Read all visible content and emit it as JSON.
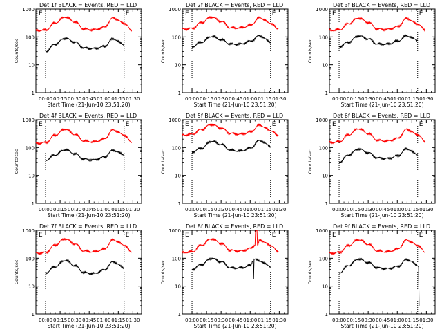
{
  "figure": {
    "xlabel_prefix": "Start Time",
    "start_time": "(21-Jun-10 23:51:20)",
    "ylabel": "Counts/sec",
    "title_suffix": "BLACK = Events, RED = LLD",
    "colors": {
      "events": "#000000",
      "lld": "#ff0000",
      "axis": "#000000",
      "background": "#ffffff"
    }
  },
  "chart_data": [
    {
      "type": "line",
      "title": "Det 1f BLACK = Events, RED = LLD",
      "detector": "Det 1f",
      "yscale": "log",
      "ylim": [
        1,
        1000
      ],
      "xlim_minutes": [
        -10,
        99
      ],
      "yticks": [
        "1",
        "10",
        "100",
        "1000"
      ],
      "xticks": [
        "00:00",
        "00:15",
        "00:30",
        "00:45",
        "01:00",
        "01:15",
        "01:30"
      ],
      "markers": [
        "E",
        "E"
      ],
      "marker_lines_minutes": [
        0,
        81
      ],
      "series": [
        {
          "name": "Events",
          "color": "#000000",
          "t_minutes": [
            0,
            10,
            20,
            30,
            40,
            50,
            60,
            70,
            81
          ],
          "values": [
            30,
            55,
            90,
            65,
            40,
            38,
            45,
            85,
            52
          ]
        },
        {
          "name": "LLD",
          "color": "#ff0000",
          "t_minutes": [
            -10,
            0,
            10,
            20,
            30,
            40,
            50,
            60,
            70,
            80,
            89
          ],
          "values": [
            170,
            175,
            320,
            520,
            350,
            190,
            180,
            220,
            480,
            320,
            180
          ]
        }
      ]
    },
    {
      "type": "line",
      "title": "Det 2f BLACK = Events, RED = LLD",
      "detector": "Det 2f",
      "yscale": "log",
      "ylim": [
        1,
        1000
      ],
      "xlim_minutes": [
        -10,
        99
      ],
      "yticks": [
        "1",
        "10",
        "100",
        "1000"
      ],
      "xticks": [
        "00:00",
        "00:15",
        "00:30",
        "00:45",
        "01:00",
        "01:15",
        "01:30"
      ],
      "markers": [
        "E",
        "E"
      ],
      "marker_lines_minutes": [
        0,
        81
      ],
      "series": [
        {
          "name": "Events",
          "color": "#000000",
          "t_minutes": [
            0,
            10,
            20,
            30,
            40,
            50,
            60,
            70,
            81
          ],
          "values": [
            45,
            65,
            105,
            80,
            55,
            55,
            70,
            110,
            65
          ]
        },
        {
          "name": "LLD",
          "color": "#ff0000",
          "t_minutes": [
            -10,
            0,
            10,
            20,
            30,
            40,
            50,
            60,
            70,
            80,
            89
          ],
          "values": [
            190,
            200,
            330,
            520,
            360,
            210,
            210,
            260,
            490,
            320,
            200
          ]
        }
      ]
    },
    {
      "type": "line",
      "title": "Det 3f BLACK = Events, RED = LLD",
      "detector": "Det 3f",
      "yscale": "log",
      "ylim": [
        1,
        1000
      ],
      "xlim_minutes": [
        -10,
        99
      ],
      "yticks": [
        "1",
        "10",
        "100",
        "1000"
      ],
      "xticks": [
        "00:00",
        "00:15",
        "00:30",
        "00:45",
        "01:00",
        "01:15",
        "01:30"
      ],
      "markers": [
        "E",
        "E"
      ],
      "marker_lines_minutes": [
        0,
        81
      ],
      "series": [
        {
          "name": "Events",
          "color": "#000000",
          "t_minutes": [
            0,
            10,
            20,
            30,
            40,
            50,
            60,
            70,
            81
          ],
          "values": [
            45,
            65,
            110,
            85,
            55,
            55,
            70,
            110,
            75
          ]
        },
        {
          "name": "LLD",
          "color": "#ff0000",
          "t_minutes": [
            -10,
            0,
            10,
            20,
            30,
            40,
            50,
            60,
            70,
            80,
            89
          ],
          "values": [
            170,
            180,
            300,
            480,
            330,
            190,
            185,
            230,
            460,
            300,
            185
          ]
        }
      ]
    },
    {
      "type": "line",
      "title": "Det 4f BLACK = Events, RED = LLD",
      "detector": "Det 4f",
      "yscale": "log",
      "ylim": [
        1,
        1000
      ],
      "xlim_minutes": [
        -10,
        99
      ],
      "yticks": [
        "1",
        "10",
        "100",
        "1000"
      ],
      "xticks": [
        "00:00",
        "00:15",
        "00:30",
        "00:45",
        "01:00",
        "01:15",
        "01:30"
      ],
      "markers": [
        "E",
        "E"
      ],
      "marker_lines_minutes": [
        0,
        81
      ],
      "series": [
        {
          "name": "Events",
          "color": "#000000",
          "t_minutes": [
            0,
            10,
            20,
            30,
            40,
            50,
            60,
            70,
            81
          ],
          "values": [
            35,
            55,
            85,
            60,
            38,
            36,
            45,
            80,
            55
          ]
        },
        {
          "name": "LLD",
          "color": "#ff0000",
          "t_minutes": [
            -10,
            0,
            10,
            20,
            30,
            40,
            50,
            60,
            70,
            80,
            89
          ],
          "values": [
            140,
            150,
            280,
            460,
            300,
            170,
            160,
            200,
            430,
            290,
            160
          ]
        }
      ]
    },
    {
      "type": "line",
      "title": "Det 5f BLACK = Events, RED = LLD",
      "detector": "Det 5f",
      "yscale": "log",
      "ylim": [
        1,
        1000
      ],
      "xlim_minutes": [
        -10,
        99
      ],
      "yticks": [
        "1",
        "10",
        "100",
        "1000"
      ],
      "xticks": [
        "00:00",
        "00:15",
        "00:30",
        "00:45",
        "01:00",
        "01:15",
        "01:30"
      ],
      "markers": [
        "E",
        "E"
      ],
      "marker_lines_minutes": [
        0,
        81
      ],
      "series": [
        {
          "name": "Events",
          "color": "#000000",
          "t_minutes": [
            0,
            10,
            20,
            30,
            40,
            50,
            60,
            70,
            81
          ],
          "values": [
            70,
            95,
            170,
            130,
            80,
            75,
            95,
            180,
            110
          ]
        },
        {
          "name": "LLD",
          "color": "#ff0000",
          "t_minutes": [
            -10,
            0,
            10,
            20,
            30,
            40,
            50,
            60,
            70,
            80,
            89
          ],
          "values": [
            280,
            300,
            450,
            680,
            500,
            320,
            300,
            360,
            640,
            420,
            280
          ]
        }
      ]
    },
    {
      "type": "line",
      "title": "Det 6f BLACK = Events, RED = LLD",
      "detector": "Det 6f",
      "yscale": "log",
      "ylim": [
        1,
        1000
      ],
      "xlim_minutes": [
        -10,
        99
      ],
      "yticks": [
        "1",
        "10",
        "100",
        "1000"
      ],
      "xticks": [
        "00:00",
        "00:15",
        "00:30",
        "00:45",
        "01:00",
        "01:15",
        "01:30"
      ],
      "markers": [
        "E",
        "E"
      ],
      "marker_lines_minutes": [
        0,
        81
      ],
      "series": [
        {
          "name": "Events",
          "color": "#000000",
          "t_minutes": [
            0,
            10,
            20,
            30,
            40,
            50,
            60,
            70,
            81
          ],
          "values": [
            30,
            55,
            90,
            65,
            42,
            40,
            50,
            90,
            55
          ]
        },
        {
          "name": "LLD",
          "color": "#ff0000",
          "t_minutes": [
            -10,
            0,
            10,
            20,
            30,
            40,
            50,
            60,
            70,
            80,
            89
          ],
          "values": [
            150,
            160,
            290,
            480,
            320,
            180,
            170,
            210,
            450,
            300,
            170
          ]
        }
      ]
    },
    {
      "type": "line",
      "title": "Det 7f BLACK = Events, RED = LLD",
      "detector": "Det 7f",
      "yscale": "log",
      "ylim": [
        1,
        1000
      ],
      "xlim_minutes": [
        -10,
        99
      ],
      "yticks": [
        "1",
        "10",
        "100",
        "1000"
      ],
      "xticks": [
        "00:00",
        "00:15",
        "00:30",
        "00:45",
        "01:00",
        "01:15",
        "01:30"
      ],
      "markers": [
        "E",
        "E"
      ],
      "marker_lines_minutes": [
        0,
        81
      ],
      "series": [
        {
          "name": "Events",
          "color": "#000000",
          "t_minutes": [
            0,
            10,
            20,
            30,
            40,
            50,
            60,
            70,
            81
          ],
          "values": [
            30,
            50,
            85,
            55,
            30,
            28,
            38,
            75,
            45
          ]
        },
        {
          "name": "LLD",
          "color": "#ff0000",
          "t_minutes": [
            -10,
            0,
            10,
            20,
            30,
            40,
            50,
            60,
            70,
            80,
            89
          ],
          "values": [
            150,
            160,
            300,
            500,
            330,
            180,
            170,
            210,
            460,
            310,
            170
          ]
        }
      ]
    },
    {
      "type": "line",
      "title": "Det 8f BLACK = Events, RED = LLD",
      "detector": "Det 8f",
      "yscale": "log",
      "ylim": [
        1,
        1000
      ],
      "xlim_minutes": [
        -10,
        99
      ],
      "yticks": [
        "1",
        "10",
        "100",
        "1000"
      ],
      "xticks": [
        "00:00",
        "00:15",
        "00:30",
        "00:45",
        "01:00",
        "01:15",
        "01:30"
      ],
      "markers": [
        "E",
        "E"
      ],
      "marker_lines_minutes": [
        0,
        81
      ],
      "series": [
        {
          "name": "Events",
          "color": "#000000",
          "t_minutes": [
            0,
            10,
            20,
            30,
            40,
            50,
            60,
            63,
            63.5,
            64,
            70,
            81
          ],
          "values": [
            40,
            60,
            100,
            75,
            45,
            45,
            55,
            80,
            18,
            90,
            80,
            50
          ]
        },
        {
          "name": "LLD",
          "color": "#ff0000",
          "t_minutes": [
            -10,
            0,
            10,
            20,
            30,
            40,
            50,
            60,
            65,
            65.5,
            67,
            67.5,
            70,
            80,
            89
          ],
          "values": [
            160,
            170,
            300,
            500,
            340,
            190,
            180,
            220,
            300,
            1000,
            1000,
            300,
            450,
            300,
            180
          ]
        }
      ]
    },
    {
      "type": "line",
      "title": "Det 9f BLACK = Events, RED = LLD",
      "detector": "Det 9f",
      "yscale": "log",
      "ylim": [
        1,
        1000
      ],
      "xlim_minutes": [
        -10,
        99
      ],
      "yticks": [
        "1",
        "10",
        "100",
        "1000"
      ],
      "xticks": [
        "00:00",
        "00:15",
        "00:30",
        "00:45",
        "01:00",
        "01:15",
        "01:30"
      ],
      "markers": [
        "E",
        "E"
      ],
      "marker_lines_minutes": [
        0,
        81
      ],
      "series": [
        {
          "name": "Events",
          "color": "#000000",
          "t_minutes": [
            0,
            10,
            20,
            30,
            40,
            50,
            60,
            70,
            80,
            82,
            82.5
          ],
          "values": [
            30,
            55,
            95,
            70,
            45,
            42,
            50,
            90,
            60,
            50,
            2
          ]
        },
        {
          "name": "LLD",
          "color": "#ff0000",
          "t_minutes": [
            -10,
            0,
            10,
            20,
            30,
            40,
            50,
            60,
            70,
            80,
            89
          ],
          "values": [
            150,
            160,
            290,
            470,
            320,
            180,
            170,
            210,
            450,
            300,
            170
          ]
        }
      ]
    }
  ]
}
